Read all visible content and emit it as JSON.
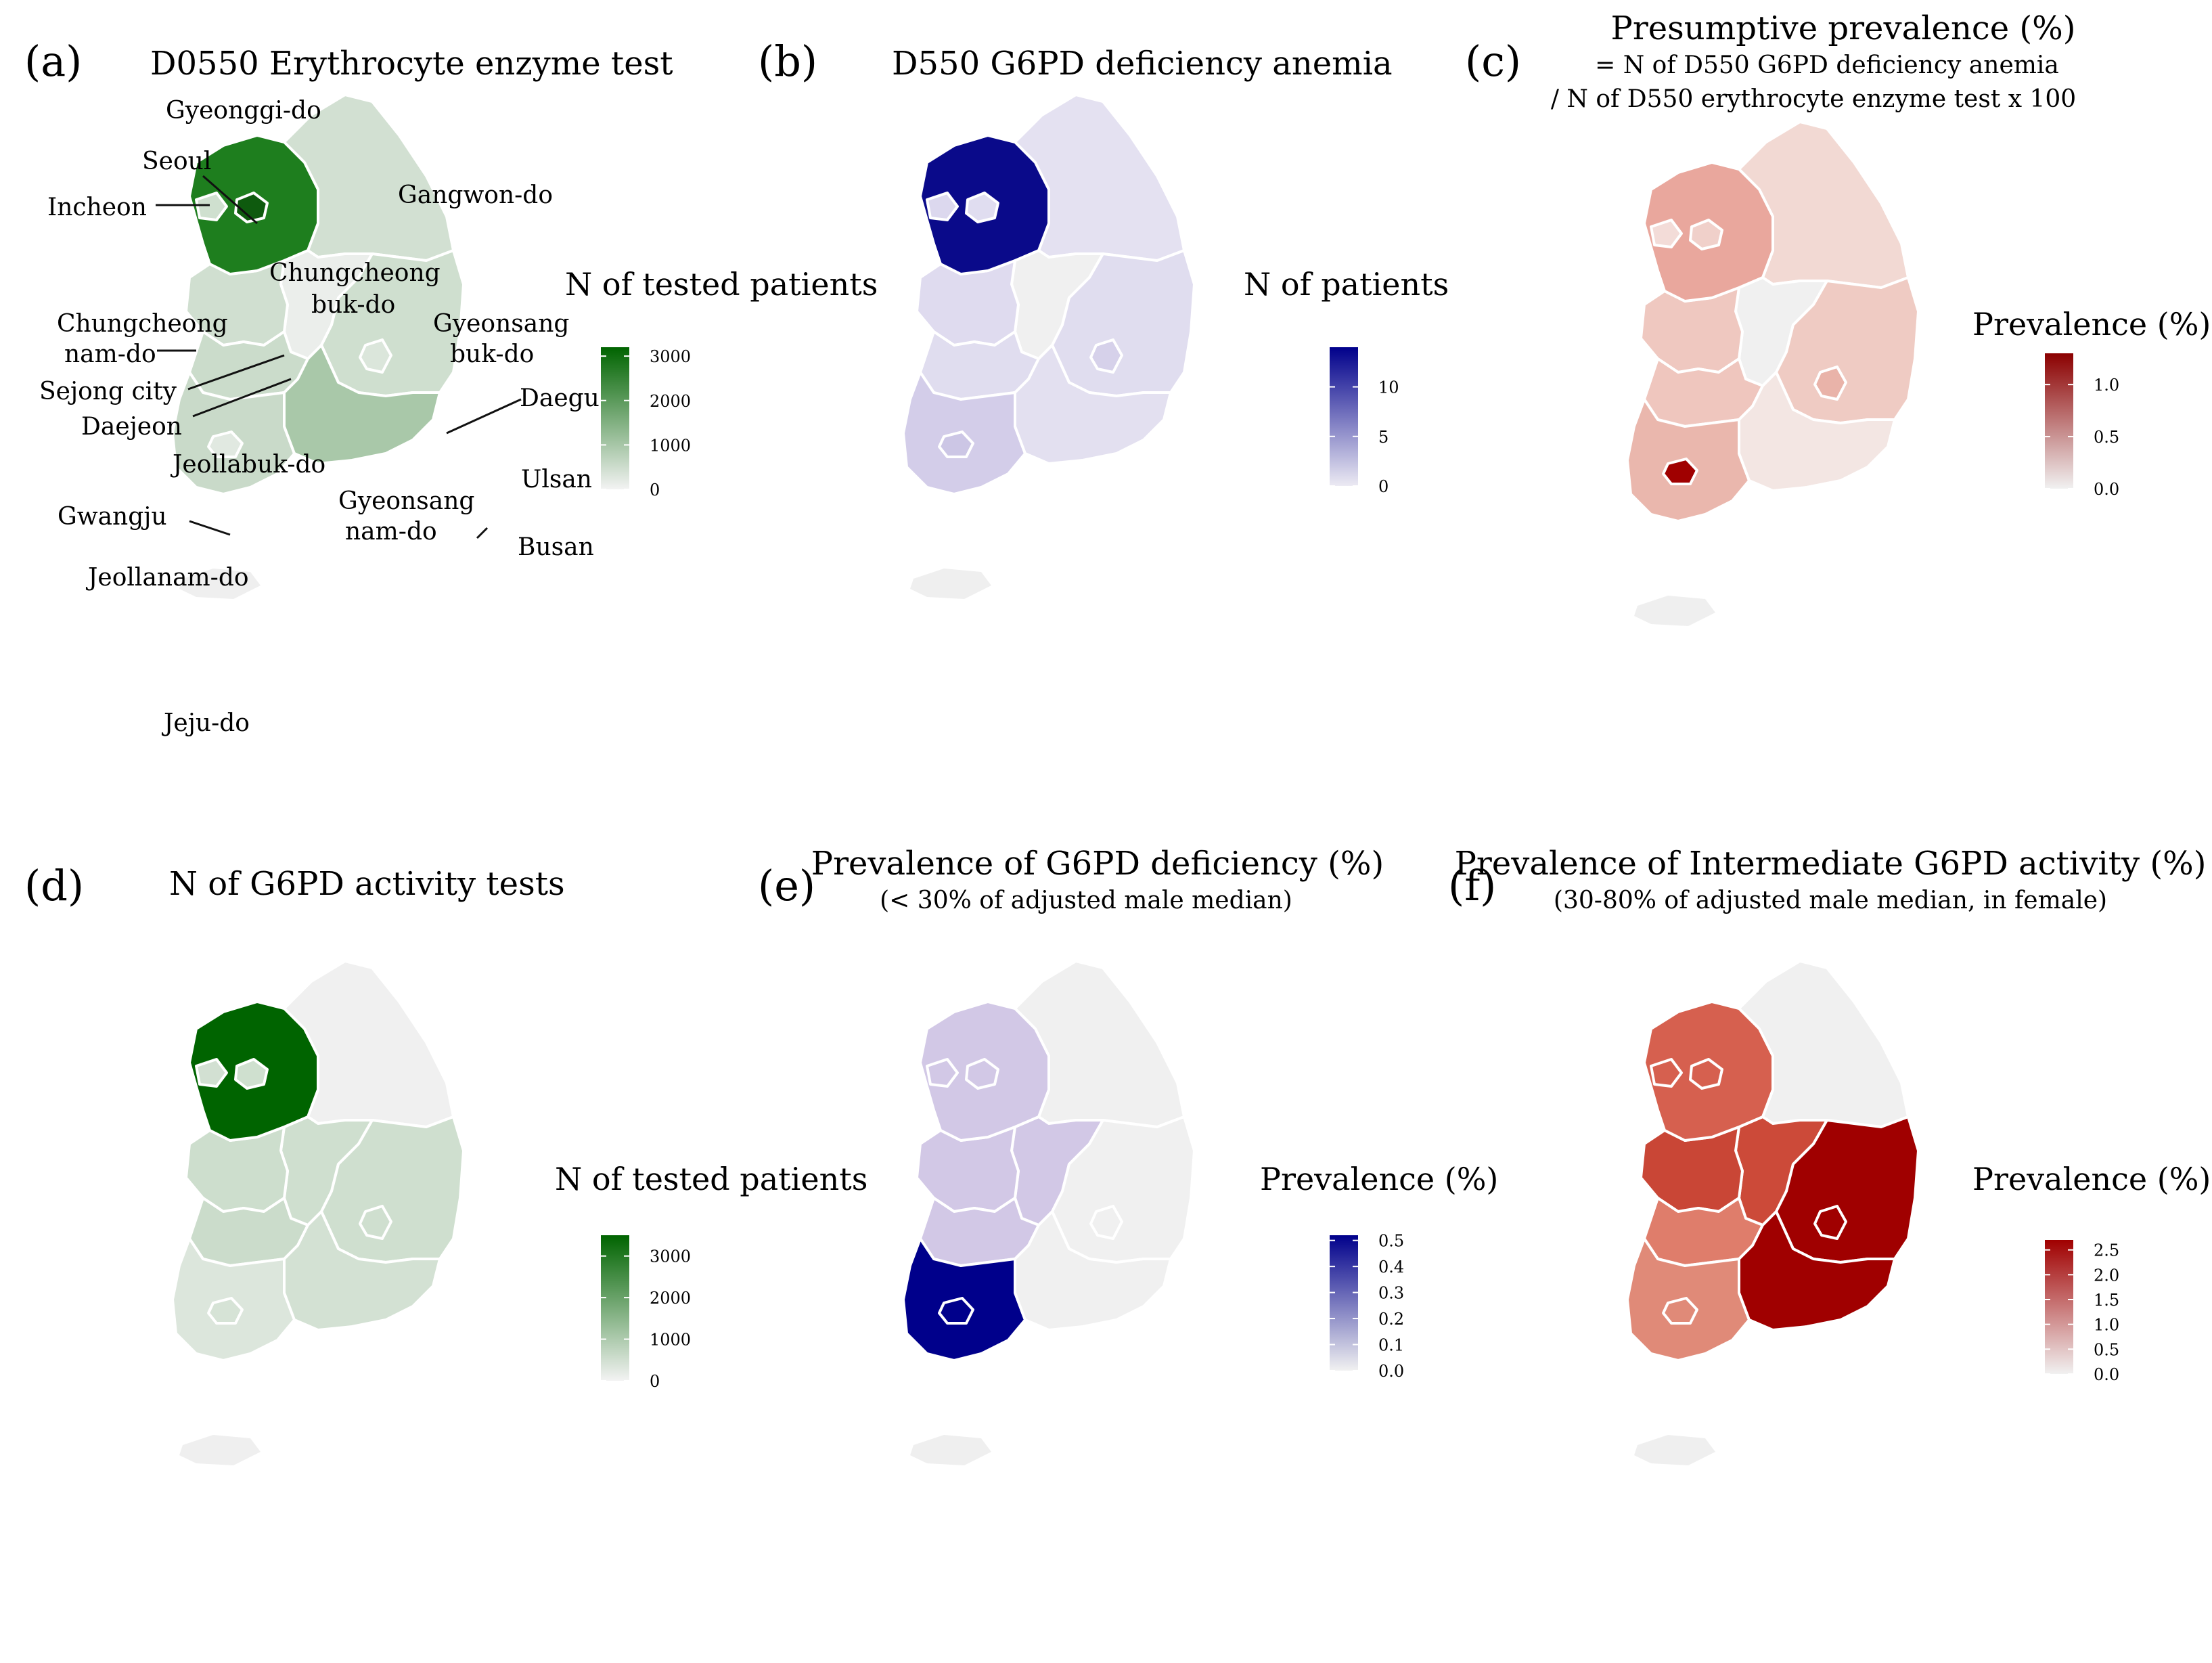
{
  "panels": [
    {
      "tag": "(a)",
      "title": "D0550 Erythrocyte enzyme test",
      "legend": {
        "title": "N of tested patients",
        "ticks": [
          3000,
          2000,
          1000,
          0
        ],
        "max": 3200,
        "color_low": "#f3f3f3",
        "color_high": "#006400"
      }
    },
    {
      "tag": "(b)",
      "title": "D550 G6PD deficiency anemia",
      "legend": {
        "title": "N of patients",
        "ticks": [
          10,
          5,
          0
        ],
        "max": 14,
        "color_low": "#eceaf3",
        "color_high": "#00008b"
      }
    },
    {
      "tag": "(c)",
      "title": "Presumptive prevalence (%)",
      "subtitle1": "= N of D550 G6PD deficiency anemia",
      "subtitle2": "/ N of D550 erythrocyte enzyme test x 100",
      "legend": {
        "title": "Prevalence (%)",
        "ticks": [
          "1.0",
          "0.5",
          "0.0"
        ],
        "max": 1.3,
        "color_low": "#f1f1f1",
        "color_high": "#8b0000"
      }
    },
    {
      "tag": "(d)",
      "title": "N of G6PD activity tests",
      "legend": {
        "title": "N of tested patients",
        "ticks": [
          3000,
          2000,
          1000,
          0
        ],
        "max": 3500,
        "color_low": "#f3f3f3",
        "color_high": "#006400"
      }
    },
    {
      "tag": "(e)",
      "title": "Prevalence of G6PD deficiency  (%)",
      "subtitle1": "(< 30% of adjusted male median)",
      "legend": {
        "title": "Prevalence (%)",
        "ticks": [
          "0.5",
          "0.4",
          "0.3",
          "0.2",
          "0.1",
          "0.0"
        ],
        "max": 0.52,
        "color_low": "#f1f1f1",
        "color_high": "#00008b"
      }
    },
    {
      "tag": "(f)",
      "title": "Prevalence of Intermediate G6PD activity (%)",
      "subtitle1": "(30-80% of adjusted male median, in female)",
      "legend": {
        "title": "Prevalence (%)",
        "ticks": [
          "2.5",
          "2.0",
          "1.5",
          "1.0",
          "0.5",
          "0.0"
        ],
        "max": 2.7,
        "color_low": "#f1f1f1",
        "color_high": "#a00000"
      }
    }
  ],
  "province_labels": [
    "Gyeonggi-do",
    "Seoul",
    "Incheon",
    "Gangwon-do",
    "Chungcheong",
    "buk-do",
    "Chungcheong",
    "nam-do",
    "Gyeonsang",
    "buk-do",
    "Sejong city",
    "Daejeon",
    "Daegu",
    "Jeollabuk-do",
    "Ulsan",
    "Gwangju",
    "Gyeonsang",
    "nam-do",
    "Busan",
    "Jeollanam-do",
    "Jeju-do"
  ],
  "region_fill": {
    "a": {
      "gyeonggi": "#1e7e1e",
      "seoul": "#0e5a0e",
      "incheon": "#cfe0cf",
      "gangwon": "#d2e0d2",
      "chungbuk": "#ebeeeb",
      "chungnam": "#d0dfd0",
      "gyeongbuk": "#cfdfcf",
      "jeonbuk": "#cbdccb",
      "jeonnam": "#c9dac9",
      "gyeongnam": "#a9c8a9",
      "daegu": "#dbe6db",
      "gwangju": "#e1e9e1",
      "jeju": "#efefef"
    },
    "b": {
      "gyeonggi": "#0a0a8a",
      "seoul": "#e0ddf0",
      "incheon": "#dcd8ee",
      "gangwon": "#e4e1f1",
      "chungbuk": "#f0f0f0",
      "chungnam": "#dfdbef",
      "gyeongbuk": "#e0ddef",
      "jeonbuk": "#e0ddef",
      "jeonnam": "#d3cde9",
      "gyeongnam": "#e3e0f0",
      "daegu": "#d6d1ea",
      "gwangju": "#ccc6e5",
      "jeju": "#efefef"
    },
    "c": {
      "gyeonggi": "#e9a79d",
      "seoul": "#f0d0ca",
      "incheon": "#f3dcd8",
      "gangwon": "#f2d9d3",
      "chungbuk": "#f0f0f0",
      "chungnam": "#efc8c0",
      "gyeongbuk": "#efcbc3",
      "jeonbuk": "#efc6be",
      "jeonnam": "#eab7ad",
      "gyeongnam": "#f3e6e3",
      "daegu": "#e9b3a9",
      "gwangju": "#a00000",
      "jeju": "#efefef"
    },
    "d": {
      "gyeonggi": "#006400",
      "seoul": "#cfe0cf",
      "incheon": "#d2e0d2",
      "gangwon": "#f0f0f0",
      "chungbuk": "#cfdfcf",
      "chungnam": "#cddecd",
      "gyeongbuk": "#cfdfcf",
      "jeonbuk": "#cbdccb",
      "jeonnam": "#dce6dc",
      "gyeongnam": "#d3e1d3",
      "daegu": "#cfdfcf",
      "gwangju": "#d6e3d6",
      "jeju": "#efefef"
    },
    "e": {
      "gyeonggi": "#d2c8e6",
      "seoul": "#d2c8e6",
      "incheon": "#d2c8e6",
      "gangwon": "#f0f0f0",
      "chungbuk": "#d2c8e6",
      "chungnam": "#d2c8e6",
      "gyeongbuk": "#f0f0f0",
      "jeonbuk": "#d2c8e6",
      "jeonnam": "#00008b",
      "gyeongnam": "#f0f0f0",
      "daegu": "#f0f0f0",
      "gwangju": "#00008b",
      "jeju": "#efefef"
    },
    "f": {
      "gyeonggi": "#d6604f",
      "seoul": "#d6604f",
      "incheon": "#d6604f",
      "gangwon": "#f0f0f0",
      "chungbuk": "#cc4a39",
      "chungnam": "#c94636",
      "gyeongbuk": "#a00000",
      "jeonbuk": "#df7d6b",
      "jeonnam": "#e08a78",
      "gyeongnam": "#a00000",
      "daegu": "#a00000",
      "gwangju": "#e08a78",
      "jeju": "#efefef"
    }
  }
}
